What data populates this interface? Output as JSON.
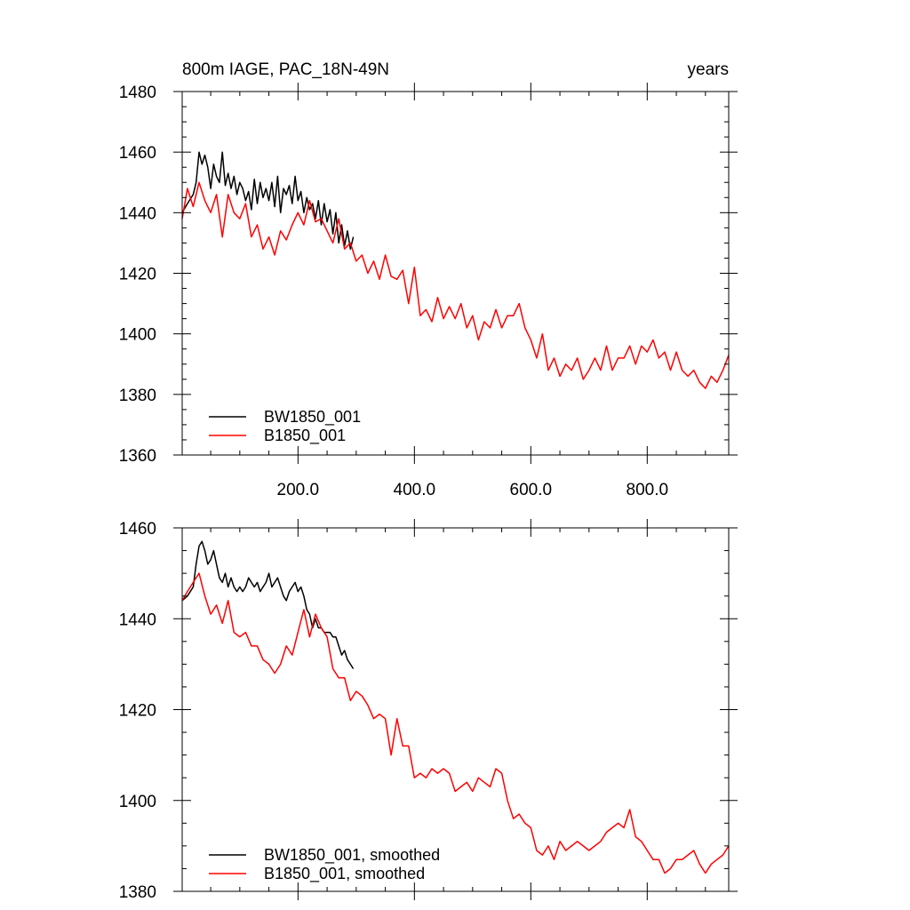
{
  "chart_data": [
    {
      "type": "line",
      "title": "800m IAGE, PAC_18N-49N",
      "title_right": "years",
      "xlabel": "",
      "ylabel": "",
      "xlim": [
        1,
        940
      ],
      "ylim": [
        1360,
        1480
      ],
      "xticks": [
        200,
        400,
        600,
        800
      ],
      "xtick_labels": [
        "200.0",
        "400.0",
        "600.0",
        "800.0"
      ],
      "yticks": [
        1360,
        1380,
        1400,
        1420,
        1440,
        1460,
        1480
      ],
      "ytick_labels": [
        "1360",
        "1380",
        "1400",
        "1420",
        "1440",
        "1460",
        "1480"
      ],
      "legend_position": "bottom-left",
      "series": [
        {
          "name": "BW1850_001",
          "color": "#000000",
          "x": [
            1,
            10,
            20,
            25,
            30,
            35,
            40,
            45,
            50,
            55,
            60,
            65,
            70,
            75,
            80,
            85,
            90,
            95,
            100,
            105,
            110,
            115,
            120,
            125,
            130,
            135,
            140,
            145,
            150,
            155,
            160,
            165,
            170,
            175,
            180,
            185,
            190,
            195,
            200,
            205,
            210,
            215,
            220,
            225,
            230,
            235,
            240,
            245,
            250,
            255,
            260,
            265,
            270,
            275,
            280,
            285,
            290,
            295
          ],
          "y": [
            1440,
            1443,
            1446,
            1450,
            1460,
            1456,
            1459,
            1455,
            1448,
            1456,
            1452,
            1450,
            1460,
            1449,
            1453,
            1448,
            1452,
            1446,
            1450,
            1448,
            1444,
            1447,
            1441,
            1451,
            1443,
            1450,
            1445,
            1448,
            1444,
            1450,
            1442,
            1452,
            1440,
            1448,
            1446,
            1449,
            1443,
            1452,
            1444,
            1447,
            1440,
            1445,
            1441,
            1443,
            1438,
            1444,
            1436,
            1443,
            1437,
            1441,
            1433,
            1440,
            1430,
            1436,
            1429,
            1434,
            1428,
            1432
          ]
        },
        {
          "name": "B1850_001",
          "color": "#ff0000",
          "x": [
            1,
            10,
            20,
            30,
            40,
            50,
            60,
            70,
            80,
            90,
            100,
            110,
            120,
            130,
            140,
            150,
            160,
            170,
            180,
            190,
            200,
            210,
            220,
            230,
            240,
            250,
            260,
            270,
            280,
            290,
            300,
            310,
            320,
            330,
            340,
            350,
            360,
            370,
            380,
            390,
            400,
            410,
            420,
            430,
            440,
            450,
            460,
            470,
            480,
            490,
            500,
            510,
            520,
            530,
            540,
            550,
            560,
            570,
            580,
            590,
            600,
            610,
            620,
            630,
            640,
            650,
            660,
            670,
            680,
            690,
            700,
            710,
            720,
            730,
            740,
            750,
            760,
            770,
            780,
            790,
            800,
            810,
            820,
            830,
            840,
            850,
            860,
            870,
            880,
            890,
            900,
            910,
            920,
            930,
            940
          ],
          "y": [
            1438,
            1448,
            1442,
            1450,
            1444,
            1440,
            1446,
            1432,
            1446,
            1440,
            1438,
            1443,
            1432,
            1436,
            1428,
            1432,
            1426,
            1434,
            1431,
            1436,
            1440,
            1436,
            1444,
            1437,
            1438,
            1434,
            1430,
            1438,
            1428,
            1430,
            1424,
            1426,
            1420,
            1424,
            1418,
            1426,
            1419,
            1418,
            1421,
            1410,
            1422,
            1406,
            1408,
            1404,
            1412,
            1405,
            1409,
            1405,
            1410,
            1402,
            1406,
            1398,
            1404,
            1402,
            1408,
            1402,
            1406,
            1406,
            1410,
            1402,
            1398,
            1392,
            1400,
            1388,
            1392,
            1386,
            1390,
            1388,
            1392,
            1385,
            1388,
            1392,
            1388,
            1396,
            1388,
            1392,
            1392,
            1396,
            1390,
            1396,
            1394,
            1398,
            1392,
            1394,
            1388,
            1394,
            1388,
            1386,
            1388,
            1384,
            1382,
            1386,
            1384,
            1388,
            1393
          ]
        }
      ]
    },
    {
      "type": "line",
      "title": "",
      "xlabel": "",
      "ylabel": "",
      "xlim": [
        1,
        940
      ],
      "ylim": [
        1380,
        1460
      ],
      "xticks": [
        200,
        400,
        600,
        800
      ],
      "yticks": [
        1380,
        1400,
        1420,
        1440,
        1460
      ],
      "ytick_labels": [
        "1380",
        "1400",
        "1420",
        "1440",
        "1460"
      ],
      "legend_position": "bottom-left",
      "series": [
        {
          "name": "BW1850_001, smoothed",
          "color": "#000000",
          "x": [
            1,
            10,
            20,
            25,
            30,
            35,
            40,
            45,
            50,
            55,
            60,
            65,
            70,
            75,
            80,
            85,
            90,
            95,
            100,
            105,
            110,
            115,
            120,
            125,
            130,
            135,
            140,
            145,
            150,
            155,
            160,
            165,
            170,
            175,
            180,
            185,
            190,
            195,
            200,
            205,
            210,
            215,
            220,
            225,
            230,
            235,
            240,
            245,
            250,
            255,
            260,
            265,
            270,
            275,
            280,
            285,
            290,
            295
          ],
          "y": [
            1444,
            1445,
            1447,
            1452,
            1456,
            1457,
            1455,
            1452,
            1453,
            1455,
            1452,
            1449,
            1448,
            1450,
            1447,
            1449,
            1447,
            1446,
            1447,
            1446,
            1447,
            1449,
            1448,
            1447,
            1448,
            1446,
            1447,
            1448,
            1450,
            1447,
            1448,
            1449,
            1447,
            1445,
            1444,
            1446,
            1447,
            1448,
            1446,
            1447,
            1445,
            1442,
            1441,
            1438,
            1440,
            1438,
            1438,
            1437,
            1437,
            1437,
            1436,
            1436,
            1434,
            1432,
            1433,
            1431,
            1430,
            1429
          ]
        },
        {
          "name": "B1850_001, smoothed",
          "color": "#ff0000",
          "x": [
            1,
            10,
            20,
            30,
            40,
            50,
            60,
            70,
            80,
            90,
            100,
            110,
            120,
            130,
            140,
            150,
            160,
            170,
            180,
            190,
            200,
            210,
            220,
            230,
            240,
            250,
            260,
            270,
            280,
            290,
            300,
            310,
            320,
            330,
            340,
            350,
            360,
            370,
            380,
            390,
            400,
            410,
            420,
            430,
            440,
            450,
            460,
            470,
            480,
            490,
            500,
            510,
            520,
            530,
            540,
            550,
            560,
            570,
            580,
            590,
            600,
            610,
            620,
            630,
            640,
            650,
            660,
            670,
            680,
            690,
            700,
            710,
            720,
            730,
            740,
            750,
            760,
            770,
            780,
            790,
            800,
            810,
            820,
            830,
            840,
            850,
            860,
            870,
            880,
            890,
            900,
            910,
            920,
            930,
            940
          ],
          "y": [
            1444,
            1446,
            1448,
            1450,
            1445,
            1441,
            1443,
            1439,
            1444,
            1437,
            1436,
            1437,
            1434,
            1434,
            1431,
            1430,
            1428,
            1430,
            1434,
            1432,
            1437,
            1442,
            1436,
            1441,
            1438,
            1436,
            1429,
            1427,
            1427,
            1422,
            1424,
            1423,
            1421,
            1418,
            1419,
            1418,
            1410,
            1418,
            1412,
            1412,
            1405,
            1406,
            1405,
            1407,
            1406,
            1407,
            1406,
            1402,
            1403,
            1404,
            1402,
            1405,
            1404,
            1403,
            1407,
            1406,
            1400,
            1396,
            1397,
            1395,
            1394,
            1389,
            1388,
            1390,
            1387,
            1391,
            1389,
            1390,
            1391,
            1390,
            1389,
            1390,
            1391,
            1393,
            1394,
            1395,
            1394,
            1398,
            1392,
            1391,
            1389,
            1387,
            1387,
            1384,
            1385,
            1387,
            1387,
            1388,
            1389,
            1386,
            1384,
            1386,
            1387,
            1388,
            1390
          ]
        }
      ]
    }
  ]
}
